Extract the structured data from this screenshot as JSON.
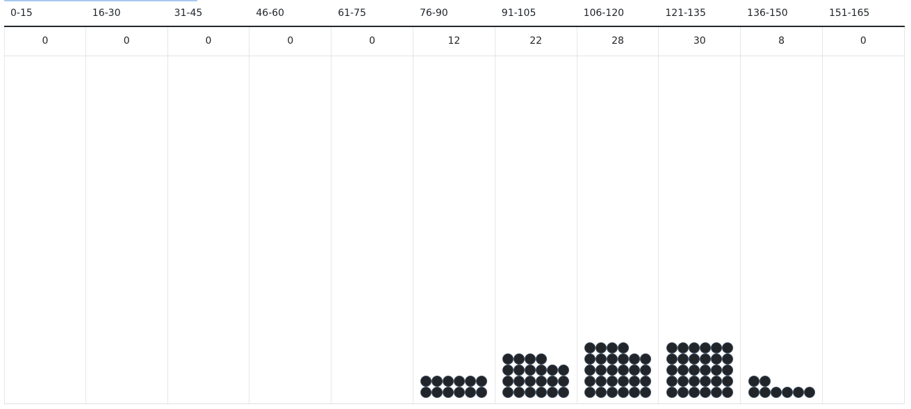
{
  "chart_data": {
    "type": "table",
    "subtype": "dot-histogram",
    "categories": [
      "0-15",
      "16-30",
      "31-45",
      "46-60",
      "61-75",
      "76-90",
      "91-105",
      "106-120",
      "121-135",
      "136-150",
      "151-165"
    ],
    "values": [
      0,
      0,
      0,
      0,
      0,
      12,
      22,
      28,
      30,
      8,
      0
    ],
    "dots_per_row": 6,
    "title": "",
    "xlabel": "",
    "ylabel": ""
  },
  "colors": {
    "dot": "#212529",
    "grid": "#e3e6ea",
    "accent": "#a8c8f0"
  }
}
